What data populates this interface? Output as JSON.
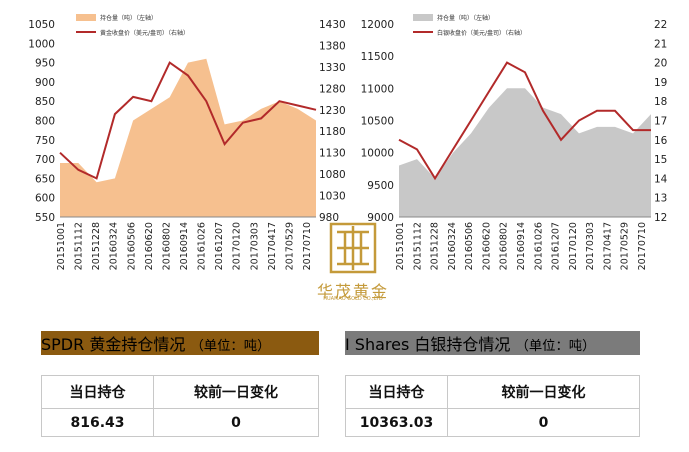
{
  "chart_data": [
    {
      "type": "area+line",
      "dates": [
        "20151001",
        "20151112",
        "20151228",
        "20160324",
        "20160506",
        "20160620",
        "20160802",
        "20160914",
        "20161026",
        "20161207",
        "20170120",
        "20170303",
        "20170417",
        "20170529",
        "20170710"
      ],
      "area_series": {
        "name": "持仓量（吨）（左轴）",
        "color": "#f6c08f",
        "values": [
          690,
          690,
          640,
          650,
          800,
          830,
          860,
          950,
          960,
          790,
          800,
          830,
          850,
          830,
          800
        ]
      },
      "line_series": {
        "name": "黄金收盘价（美元/盎司）（右轴）",
        "color": "#b22a2a",
        "values": [
          1130,
          1090,
          1070,
          1220,
          1260,
          1250,
          1340,
          1310,
          1250,
          1150,
          1200,
          1210,
          1250,
          1240,
          1230
        ]
      },
      "left_axis": {
        "ylim": [
          550,
          1050
        ],
        "ticks": [
          "1050",
          "1000",
          "950",
          "900",
          "850",
          "800",
          "750",
          "700",
          "650",
          "600",
          "550"
        ]
      },
      "right_axis": {
        "ylim": [
          980,
          1430
        ],
        "ticks": [
          "1430",
          "1380",
          "1330",
          "1280",
          "1230",
          "1180",
          "1130",
          "1080",
          "1030",
          "980"
        ]
      }
    },
    {
      "type": "area+line",
      "dates": [
        "20151001",
        "20151112",
        "20151228",
        "20160324",
        "20160506",
        "20160620",
        "20160802",
        "20160914",
        "20161026",
        "20161207",
        "20170120",
        "20170303",
        "20170417",
        "20170529",
        "20170710"
      ],
      "area_series": {
        "name": "持仓量（吨）（左轴）",
        "color": "#c8c8c8",
        "values": [
          9800,
          9900,
          9600,
          10000,
          10300,
          10700,
          11000,
          11000,
          10700,
          10600,
          10300,
          10400,
          10400,
          10300,
          10600
        ]
      },
      "line_series": {
        "name": "白银收盘价（美元/盎司）（右轴）",
        "color": "#b22a2a",
        "values": [
          16,
          15.5,
          14,
          15.5,
          17,
          18.5,
          20,
          19.5,
          17.5,
          16,
          17,
          17.5,
          17.5,
          16.5,
          16.5
        ]
      },
      "left_axis": {
        "ylim": [
          9000,
          12000
        ],
        "ticks": [
          "12000",
          "11500",
          "11000",
          "10500",
          "10000",
          "9500",
          "9000"
        ]
      },
      "right_axis": {
        "ylim": [
          12,
          22
        ],
        "ticks": [
          "22",
          "21",
          "20",
          "19",
          "18",
          "17",
          "16",
          "15",
          "14",
          "13",
          "12"
        ]
      }
    }
  ],
  "logo": {
    "name": "华茂黄金",
    "sub": "HUAMAO GOLD CO.,LTD"
  },
  "tables": {
    "gold": {
      "title": "SPDR 黄金持仓情况",
      "unit": "（单位：吨）",
      "col1": "当日持仓",
      "col2": "较前一日变化",
      "val1": "816.43",
      "val2": "0",
      "color": "#8b5a10"
    },
    "silver": {
      "title": "I Shares 白银持仓情况",
      "unit": "（单位：吨）",
      "col1": "当日持仓",
      "col2": "较前一日变化",
      "val1": "10363.03",
      "val2": "0",
      "color": "#7b7b7b"
    }
  }
}
